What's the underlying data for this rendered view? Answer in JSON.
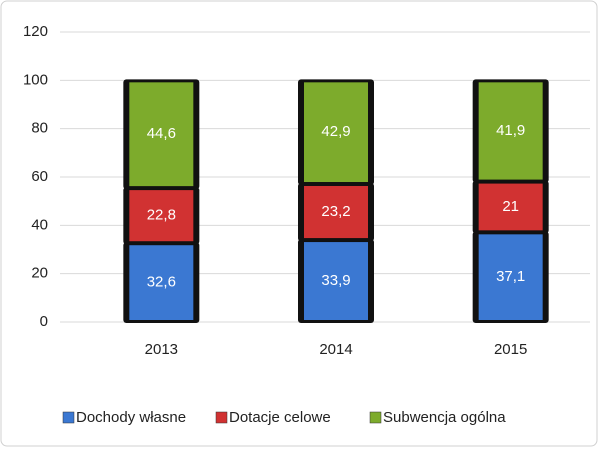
{
  "chart_data": {
    "type": "stacked_bar",
    "categories": [
      "2013",
      "2014",
      "2015"
    ],
    "series": [
      {
        "name": "Dochody własne",
        "color": "#3b78d2",
        "values": [
          32.6,
          33.9,
          37.1
        ],
        "value_labels": [
          "32,6",
          "33,9",
          "37,1"
        ]
      },
      {
        "name": "Dotacje celowe",
        "color": "#d13232",
        "values": [
          22.8,
          23.2,
          21
        ],
        "value_labels": [
          "22,8",
          "23,2",
          "21"
        ]
      },
      {
        "name": "Subwencja ogólna",
        "color": "#7dab2c",
        "values": [
          44.6,
          42.9,
          41.9
        ],
        "value_labels": [
          "44,6",
          "42,9",
          "41,9"
        ]
      }
    ],
    "ylim": [
      0,
      120
    ],
    "yticks": [
      0,
      20,
      40,
      60,
      80,
      100,
      120
    ],
    "grid": true
  }
}
